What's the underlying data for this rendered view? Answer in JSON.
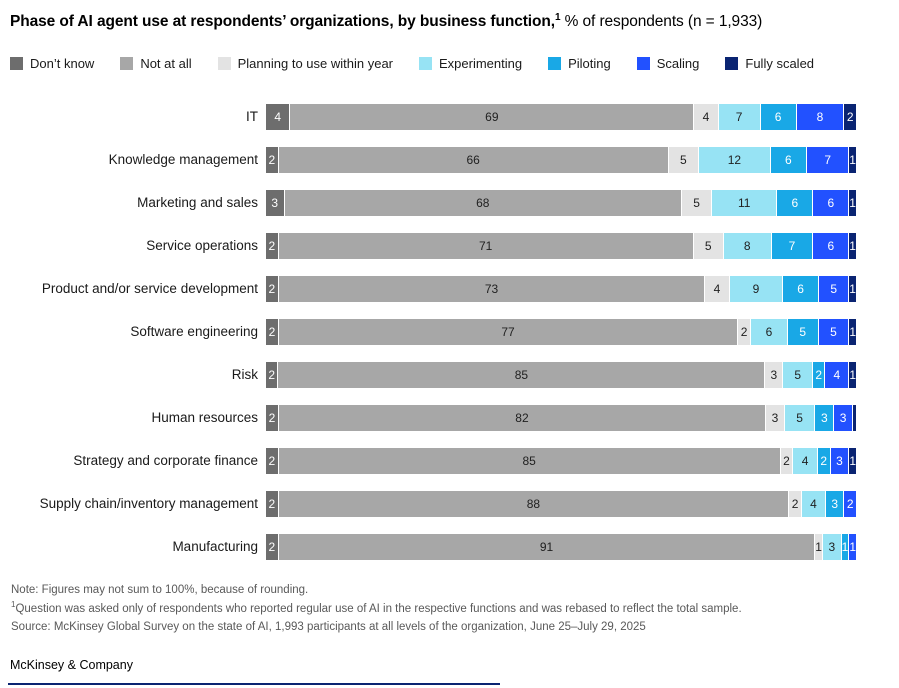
{
  "title": {
    "main": "Phase of AI agent use at respondents’ organizations, by business function,",
    "footnote_marker": "1",
    "suffix": " % of respondents (n = 1,933)"
  },
  "colors": {
    "dont_know": "#6d6d6d",
    "not_at_all": "#a7a7a7",
    "planning": "#e3e3e3",
    "experimenting": "#97e3f4",
    "piloting": "#19a8e6",
    "scaling": "#2251ff",
    "fully_scaled": "#0a2472",
    "bottom_rule": "#0a2472"
  },
  "legend": [
    {
      "label": "Don’t know",
      "color": "#6d6d6d"
    },
    {
      "label": "Not at all",
      "color": "#a7a7a7"
    },
    {
      "label": "Planning to use within year",
      "color": "#e3e3e3"
    },
    {
      "label": "Experimenting",
      "color": "#97e3f4"
    },
    {
      "label": "Piloting",
      "color": "#19a8e6"
    },
    {
      "label": "Scaling",
      "color": "#2251ff"
    },
    {
      "label": "Fully scaled",
      "color": "#0a2472"
    }
  ],
  "chart_data": {
    "type": "bar",
    "stacked": true,
    "orientation": "horizontal",
    "unit": "% of respondents",
    "n": "1,933",
    "series": [
      {
        "name": "Don’t know",
        "color": "#6d6d6d",
        "label_color": "#ffffff"
      },
      {
        "name": "Not at all",
        "color": "#a7a7a7",
        "label_color": "#1f1f1f"
      },
      {
        "name": "Planning to use within year",
        "color": "#e3e3e3",
        "label_color": "#1f1f1f"
      },
      {
        "name": "Experimenting",
        "color": "#97e3f4",
        "label_color": "#1f1f1f"
      },
      {
        "name": "Piloting",
        "color": "#19a8e6",
        "label_color": "#ffffff"
      },
      {
        "name": "Scaling",
        "color": "#2251ff",
        "label_color": "#ffffff"
      },
      {
        "name": "Fully scaled",
        "color": "#0a2472",
        "label_color": "#ffffff"
      }
    ],
    "rows": [
      {
        "category": "IT",
        "values": [
          4,
          69,
          4,
          7,
          6,
          8,
          2
        ],
        "labels": [
          "4",
          "69",
          "4",
          "7",
          "6",
          "8",
          "2"
        ]
      },
      {
        "category": "Knowledge management",
        "values": [
          2,
          66,
          5,
          12,
          6,
          7,
          1
        ],
        "labels": [
          "2",
          "66",
          "5",
          "12",
          "6",
          "7",
          "1"
        ]
      },
      {
        "category": "Marketing and sales",
        "values": [
          3,
          68,
          5,
          11,
          6,
          6,
          1
        ],
        "labels": [
          "3",
          "68",
          "5",
          "11",
          "6",
          "6",
          "1"
        ]
      },
      {
        "category": "Service operations",
        "values": [
          2,
          71,
          5,
          8,
          7,
          6,
          1
        ],
        "labels": [
          "2",
          "71",
          "5",
          "8",
          "7",
          "6",
          "1"
        ]
      },
      {
        "category": "Product and/or service development",
        "values": [
          2,
          73,
          4,
          9,
          6,
          5,
          1
        ],
        "labels": [
          "2",
          "73",
          "4",
          "9",
          "6",
          "5",
          "1"
        ]
      },
      {
        "category": "Software engineering",
        "values": [
          2,
          77,
          2,
          6,
          5,
          5,
          1
        ],
        "labels": [
          "2",
          "77",
          "2",
          "6",
          "5",
          "5",
          "1"
        ]
      },
      {
        "category": "Risk",
        "values": [
          2,
          85,
          3,
          5,
          2,
          4,
          1
        ],
        "labels": [
          "2",
          "85",
          "3",
          "5",
          "2",
          "4",
          "1"
        ]
      },
      {
        "category": "Human resources",
        "values": [
          2,
          82,
          3,
          5,
          3,
          3,
          0.5
        ],
        "labels": [
          "2",
          "82",
          "3",
          "5",
          "3",
          "3",
          ""
        ]
      },
      {
        "category": "Strategy and corporate finance",
        "values": [
          2,
          85,
          2,
          4,
          2,
          3,
          1
        ],
        "labels": [
          "2",
          "85",
          "2",
          "4",
          "2",
          "3",
          "1"
        ]
      },
      {
        "category": "Supply chain/inventory management",
        "values": [
          2,
          88,
          2,
          4,
          3,
          2,
          0
        ],
        "labels": [
          "2",
          "88",
          "2",
          "4",
          "3",
          "2",
          ""
        ]
      },
      {
        "category": "Manufacturing",
        "values": [
          2,
          91,
          1,
          3,
          1,
          1,
          0
        ],
        "labels": [
          "2",
          "91",
          "1",
          "3",
          "1",
          "1",
          ""
        ]
      }
    ]
  },
  "footnotes": {
    "note": "Note: Figures may not sum to 100%, because of rounding.",
    "fn_marker": "1",
    "fn_text": "Question was asked only of respondents who reported regular use of AI in the respective functions and was rebased to reflect the total sample.",
    "source": "Source: McKinsey Global Survey on the state of AI, 1,993 participants at all levels of the organization, June 25–July 29, 2025"
  },
  "footer": {
    "brand": "McKinsey & Company"
  }
}
